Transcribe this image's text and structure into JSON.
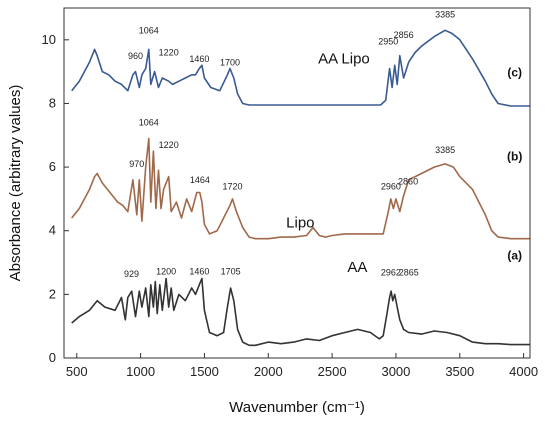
{
  "chart_data": {
    "type": "line",
    "xlabel": "Wavenumber (cm⁻¹)",
    "ylabel": "Absorbance (arbitrary values)",
    "xlim": [
      400,
      4050
    ],
    "ylim": [
      0,
      11
    ],
    "xticks": [
      500,
      1000,
      1500,
      2000,
      2500,
      3000,
      3500,
      4000
    ],
    "yticks": [
      0,
      2,
      4,
      6,
      8,
      10
    ],
    "grid": false,
    "series": [
      {
        "name": "AA",
        "tag": "(a)",
        "color": "#333333",
        "label_at": [
          2620,
          2.7
        ],
        "tag_at": [
          3930,
          3.1
        ],
        "x": [
          460,
          520,
          600,
          660,
          720,
          800,
          850,
          880,
          900,
          930,
          960,
          990,
          1010,
          1040,
          1064,
          1080,
          1100,
          1115,
          1130,
          1150,
          1170,
          1200,
          1220,
          1240,
          1260,
          1300,
          1350,
          1400,
          1430,
          1460,
          1480,
          1500,
          1540,
          1600,
          1650,
          1680,
          1705,
          1730,
          1760,
          1800,
          1850,
          1900,
          2000,
          2100,
          2200,
          2300,
          2400,
          2500,
          2600,
          2700,
          2800,
          2870,
          2900,
          2930,
          2950,
          2962,
          2975,
          2990,
          3010,
          3030,
          3060,
          3100,
          3200,
          3300,
          3400,
          3500,
          3600,
          3700,
          3800,
          3900,
          4050
        ],
        "y": [
          1.1,
          1.3,
          1.5,
          1.8,
          1.6,
          1.5,
          1.9,
          1.2,
          1.9,
          2.1,
          1.3,
          2.1,
          1.6,
          2.2,
          1.3,
          2.3,
          1.6,
          2.4,
          1.4,
          2.3,
          1.5,
          2.5,
          1.6,
          2.2,
          1.5,
          2.0,
          1.8,
          2.2,
          2.0,
          2.3,
          2.5,
          1.5,
          0.8,
          0.7,
          0.8,
          1.6,
          2.2,
          1.8,
          0.9,
          0.5,
          0.4,
          0.4,
          0.5,
          0.45,
          0.5,
          0.6,
          0.55,
          0.7,
          0.8,
          0.9,
          0.8,
          0.6,
          0.7,
          1.4,
          1.9,
          2.1,
          1.8,
          2.0,
          1.6,
          1.2,
          0.9,
          0.8,
          0.75,
          0.85,
          0.8,
          0.7,
          0.5,
          0.45,
          0.45,
          0.42,
          0.42
        ]
      },
      {
        "name": "Lipo",
        "tag": "(b)",
        "color": "#a0694a",
        "label_at": [
          2140,
          4.1
        ],
        "tag_at": [
          3930,
          6.2
        ],
        "x": [
          460,
          520,
          600,
          640,
          660,
          700,
          760,
          820,
          860,
          900,
          940,
          970,
          990,
          1010,
          1040,
          1064,
          1080,
          1100,
          1120,
          1140,
          1160,
          1180,
          1220,
          1240,
          1280,
          1320,
          1360,
          1400,
          1440,
          1464,
          1480,
          1500,
          1540,
          1600,
          1650,
          1700,
          1720,
          1750,
          1800,
          1850,
          1900,
          2000,
          2100,
          2200,
          2300,
          2350,
          2400,
          2450,
          2500,
          2600,
          2700,
          2800,
          2900,
          2940,
          2960,
          2980,
          3000,
          3030,
          3060,
          3100,
          3200,
          3300,
          3385,
          3450,
          3500,
          3600,
          3700,
          3750,
          3800,
          3900,
          4050
        ],
        "y": [
          4.4,
          4.7,
          5.3,
          5.7,
          5.8,
          5.5,
          5.2,
          4.9,
          4.8,
          4.6,
          5.6,
          4.5,
          5.6,
          4.3,
          6.0,
          6.9,
          4.9,
          6.5,
          4.7,
          5.9,
          4.7,
          5.3,
          5.7,
          4.6,
          4.9,
          4.4,
          5.0,
          4.6,
          5.2,
          5.2,
          4.9,
          4.2,
          3.9,
          4.0,
          4.4,
          4.8,
          5.0,
          4.6,
          4.1,
          3.8,
          3.75,
          3.75,
          3.8,
          3.8,
          3.85,
          4.1,
          3.85,
          3.8,
          3.85,
          3.9,
          3.9,
          3.9,
          3.9,
          4.6,
          5.0,
          4.7,
          5.0,
          4.6,
          5.1,
          5.6,
          5.8,
          6.0,
          6.1,
          6.0,
          5.7,
          5.3,
          4.5,
          4.0,
          3.8,
          3.75,
          3.75
        ]
      },
      {
        "name": "AA Lipo",
        "tag": "(c)",
        "color": "#3a5a92",
        "label_at": [
          2390,
          9.25
        ],
        "tag_at": [
          3930,
          8.85
        ],
        "x": [
          460,
          520,
          600,
          640,
          660,
          700,
          750,
          800,
          850,
          900,
          940,
          960,
          990,
          1010,
          1040,
          1064,
          1080,
          1110,
          1140,
          1170,
          1220,
          1250,
          1300,
          1350,
          1400,
          1430,
          1460,
          1480,
          1500,
          1550,
          1620,
          1680,
          1700,
          1730,
          1760,
          1800,
          1850,
          1900,
          2000,
          2100,
          2200,
          2300,
          2400,
          2500,
          2600,
          2700,
          2800,
          2880,
          2920,
          2950,
          2970,
          2990,
          3010,
          3030,
          3060,
          3100,
          3150,
          3200,
          3300,
          3385,
          3440,
          3500,
          3600,
          3700,
          3750,
          3800,
          3900,
          4050
        ],
        "y": [
          8.4,
          8.7,
          9.3,
          9.7,
          9.5,
          9.0,
          8.9,
          8.7,
          8.6,
          8.4,
          8.9,
          9.0,
          8.5,
          8.9,
          9.1,
          9.7,
          8.6,
          9.0,
          8.5,
          8.8,
          8.7,
          8.6,
          8.7,
          8.8,
          8.9,
          8.9,
          9.1,
          9.2,
          8.8,
          8.5,
          8.4,
          8.9,
          9.1,
          8.8,
          8.3,
          8.0,
          7.95,
          7.95,
          7.95,
          7.95,
          7.95,
          7.95,
          7.95,
          7.95,
          7.95,
          7.95,
          7.95,
          7.95,
          8.1,
          9.1,
          8.5,
          9.2,
          8.6,
          9.5,
          8.8,
          9.3,
          9.6,
          9.8,
          10.1,
          10.3,
          10.2,
          10.0,
          9.4,
          8.7,
          8.3,
          8.0,
          7.92,
          7.92
        ]
      }
    ],
    "annotations": [
      {
        "text": "929",
        "x": 929,
        "y": 2.55
      },
      {
        "text": "1200",
        "x": 1200,
        "y": 2.63
      },
      {
        "text": "1460",
        "x": 1460,
        "y": 2.63
      },
      {
        "text": "1705",
        "x": 1705,
        "y": 2.63
      },
      {
        "text": "2962",
        "x": 2960,
        "y": 2.6
      },
      {
        "text": "2865",
        "x": 3100,
        "y": 2.6
      },
      {
        "text": "970",
        "x": 970,
        "y": 6.0
      },
      {
        "text": "1064",
        "x": 1064,
        "y": 7.3
      },
      {
        "text": "1220",
        "x": 1220,
        "y": 6.6
      },
      {
        "text": "1464",
        "x": 1464,
        "y": 5.5
      },
      {
        "text": "1720",
        "x": 1720,
        "y": 5.3
      },
      {
        "text": "2960",
        "x": 2960,
        "y": 5.3
      },
      {
        "text": "2860",
        "x": 3095,
        "y": 5.45
      },
      {
        "text": "3385",
        "x": 3385,
        "y": 6.45
      },
      {
        "text": "960",
        "x": 960,
        "y": 9.4
      },
      {
        "text": "1064",
        "x": 1064,
        "y": 10.2
      },
      {
        "text": "1220",
        "x": 1220,
        "y": 9.5
      },
      {
        "text": "1460",
        "x": 1460,
        "y": 9.3
      },
      {
        "text": "1700",
        "x": 1700,
        "y": 9.2
      },
      {
        "text": "2950",
        "x": 2940,
        "y": 9.85
      },
      {
        "text": "2856",
        "x": 3060,
        "y": 10.05
      },
      {
        "text": "3385",
        "x": 3385,
        "y": 10.7
      }
    ]
  }
}
